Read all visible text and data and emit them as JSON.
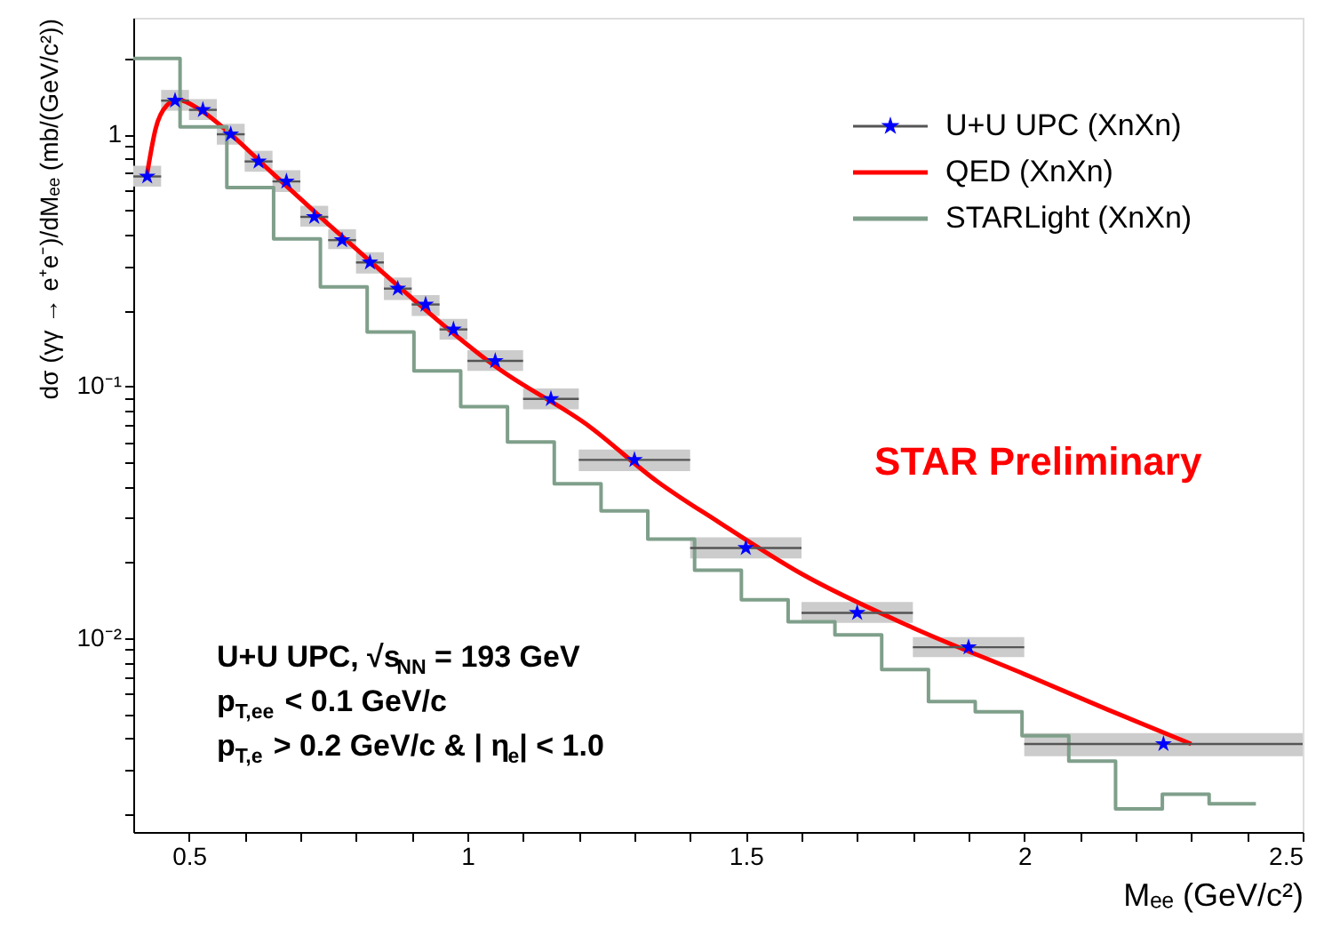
{
  "chart_data": {
    "type": "scatter",
    "xlabel": "Mₑₑ (GeV/c²)",
    "ylabel": "dσ (γγ → e⁺e⁻)/dMₑₑ (mb/(GeV/c²))",
    "xlim": [
      0.4,
      2.5
    ],
    "xticks": [
      0.5,
      {
        "value": 0.6,
        "label": null
      },
      {
        "value": 0.7,
        "label": null
      },
      {
        "value": 0.8,
        "label": null
      },
      {
        "value": 0.9,
        "label": null
      },
      1,
      {
        "value": 1.1,
        "label": null
      },
      {
        "value": 1.2,
        "label": null
      },
      {
        "value": 1.3,
        "label": null
      },
      {
        "value": 1.4,
        "label": null
      },
      1.5,
      {
        "value": 1.6,
        "label": null
      },
      {
        "value": 1.7,
        "label": null
      },
      {
        "value": 1.8,
        "label": null
      },
      {
        "value": 1.9,
        "label": null
      },
      2,
      {
        "value": 2.1,
        "label": null
      },
      {
        "value": 2.2,
        "label": null
      },
      {
        "value": 2.3,
        "label": null
      },
      {
        "value": 2.4,
        "label": null
      },
      2.5
    ],
    "ylim": [
      0.0017,
      2.9
    ],
    "yticks": [
      {
        "value": 0.002,
        "label": null
      },
      {
        "value": 0.003,
        "label": null
      },
      {
        "value": 0.004,
        "label": null
      },
      {
        "value": 0.005,
        "label": null
      },
      {
        "value": 0.006,
        "label": null
      },
      {
        "value": 0.007,
        "label": null
      },
      {
        "value": 0.008,
        "label": null
      },
      {
        "value": 0.009,
        "label": null
      },
      {
        "value": 0.01,
        "label": "10⁻²"
      },
      {
        "value": 0.02,
        "label": null
      },
      {
        "value": 0.03,
        "label": null
      },
      {
        "value": 0.04,
        "label": null
      },
      {
        "value": 0.05,
        "label": null
      },
      {
        "value": 0.06,
        "label": null
      },
      {
        "value": 0.07,
        "label": null
      },
      {
        "value": 0.08,
        "label": null
      },
      {
        "value": 0.09,
        "label": null
      },
      {
        "value": 0.1,
        "label": "10⁻¹"
      },
      {
        "value": 0.2,
        "label": null
      },
      {
        "value": 0.3,
        "label": null
      },
      {
        "value": 0.4,
        "label": null
      },
      {
        "value": 0.5,
        "label": null
      },
      {
        "value": 0.6,
        "label": null
      },
      {
        "value": 0.7,
        "label": null
      },
      {
        "value": 0.8,
        "label": null
      },
      {
        "value": 0.9,
        "label": null
      },
      1,
      {
        "value": 2,
        "label": null
      }
    ],
    "log": "y",
    "grid": false,
    "legend": "top right",
    "series": [
      {
        "name": "U+U UPC (XnXn)",
        "marker": "star",
        "color": "#0000ff",
        "x": [
          0.425,
          0.475,
          0.525,
          0.575,
          0.625,
          0.675,
          0.725,
          0.775,
          0.825,
          0.875,
          0.925,
          0.975,
          1.05,
          1.15,
          1.3,
          1.5,
          1.7,
          1.9,
          2.25
        ],
        "values": [
          0.68,
          1.36,
          1.25,
          1.0,
          0.78,
          0.65,
          0.47,
          0.38,
          0.31,
          0.244,
          0.211,
          0.168,
          0.126,
          0.089,
          0.051,
          0.0228,
          0.0126,
          0.0092,
          0.0038
        ],
        "errors": [
          [
            0.62,
            0.75
          ],
          [
            1.24,
            1.5
          ],
          [
            1.14,
            1.38
          ],
          [
            0.91,
            1.1
          ],
          [
            0.71,
            0.86
          ],
          [
            0.59,
            0.72
          ],
          [
            0.43,
            0.52
          ],
          [
            0.35,
            0.42
          ],
          [
            0.28,
            0.34
          ],
          [
            0.22,
            0.27
          ],
          [
            0.19,
            0.23
          ],
          [
            0.153,
            0.185
          ],
          [
            0.115,
            0.139
          ],
          [
            0.081,
            0.098
          ],
          [
            0.046,
            0.056
          ],
          [
            0.0207,
            0.0251
          ],
          [
            0.0115,
            0.0139
          ],
          [
            0.0084,
            0.0101
          ],
          [
            0.0034,
            0.0042
          ]
        ],
        "xerrors": [
          0.025,
          0.025,
          0.025,
          0.025,
          0.025,
          0.025,
          0.025,
          0.025,
          0.025,
          0.025,
          0.025,
          0.025,
          0.05,
          0.05,
          0.1,
          0.1,
          0.1,
          0.1,
          0.25
        ]
      },
      {
        "name": "QED (XnXn)",
        "type": "line",
        "color": "#ff0000",
        "x": [
          0.425,
          0.44,
          0.46,
          0.48,
          0.52,
          0.575,
          0.65,
          0.75,
          0.85,
          0.95,
          1.05,
          1.22,
          1.34,
          1.45,
          1.6,
          1.8,
          2.0,
          2.15,
          2.3
        ],
        "values": [
          0.7,
          1.05,
          1.3,
          1.37,
          1.25,
          1.0,
          0.7,
          0.44,
          0.28,
          0.18,
          0.12,
          0.069,
          0.042,
          0.029,
          0.018,
          0.011,
          0.0072,
          0.0052,
          0.0038
        ]
      },
      {
        "name": "STARLight (XnXn)",
        "type": "step",
        "color": "#7f9f8a",
        "x": [
          0.4,
          0.484,
          0.568,
          0.652,
          0.736,
          0.82,
          0.904,
          0.988,
          1.072,
          1.156,
          1.24,
          1.324,
          1.408,
          1.492,
          1.576,
          1.66,
          1.744,
          1.828,
          1.912,
          1.996,
          2.08,
          2.164,
          2.248,
          2.332,
          2.416
        ],
        "values": [
          2.0,
          1.07,
          0.615,
          0.384,
          0.248,
          0.164,
          0.115,
          0.083,
          0.06,
          0.041,
          0.032,
          0.0247,
          0.0186,
          0.0142,
          0.0116,
          0.0103,
          0.0075,
          0.0056,
          0.0051,
          0.0041,
          0.00325,
          0.0021,
          0.0024,
          0.0022,
          0.0022
        ]
      }
    ],
    "annotations": [
      "STAR Preliminary",
      "U+U UPC, √s$_{NN}$ = 193 GeV",
      "p$_{T,ee}$ < 0.1 GeV/c",
      "p$_{T,e}$ > 0.2 GeV/c & | η$_{e}$| < 1.0"
    ]
  }
}
